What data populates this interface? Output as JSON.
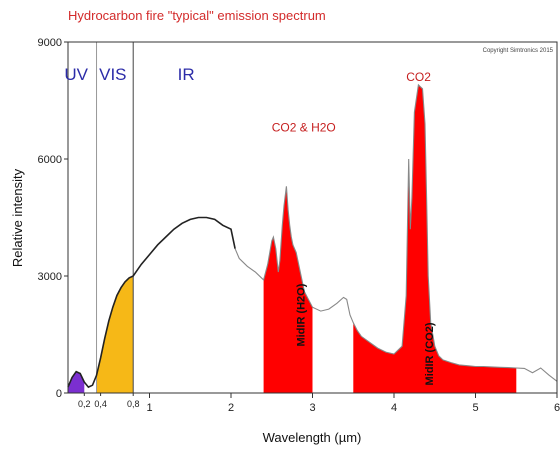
{
  "chart_data": {
    "type": "area",
    "title": "Hydrocarbon fire \"typical\" emission spectrum",
    "xlabel": "Wavelength (µm)",
    "ylabel": "Relative intensity",
    "xlim": [
      0,
      6
    ],
    "ylim": [
      0,
      9000
    ],
    "x_ticks": [
      {
        "value": 0.2,
        "label": "0,2",
        "minor": true
      },
      {
        "value": 0.4,
        "label": "0,4",
        "minor": true
      },
      {
        "value": 0.8,
        "label": "0,8",
        "minor": true
      },
      {
        "value": 1,
        "label": "1",
        "minor": false
      },
      {
        "value": 2,
        "label": "2",
        "minor": false
      },
      {
        "value": 3,
        "label": "3",
        "minor": false
      },
      {
        "value": 4,
        "label": "4",
        "minor": false
      },
      {
        "value": 5,
        "label": "5",
        "minor": false
      },
      {
        "value": 6,
        "label": "6",
        "minor": false
      }
    ],
    "y_ticks": [
      {
        "value": 0,
        "label": "0"
      },
      {
        "value": 3000,
        "label": "3000"
      },
      {
        "value": 6000,
        "label": "6000"
      },
      {
        "value": 9000,
        "label": "9000"
      }
    ],
    "series": [
      {
        "x": [
          0.0,
          0.05,
          0.1,
          0.15,
          0.2,
          0.25,
          0.3,
          0.35,
          0.4,
          0.45,
          0.5,
          0.55,
          0.6,
          0.65,
          0.7,
          0.75,
          0.8,
          0.85,
          0.9,
          1.0,
          1.1,
          1.2,
          1.3,
          1.4,
          1.5,
          1.6,
          1.7,
          1.8,
          1.9,
          2.0,
          2.05,
          2.1,
          2.2,
          2.3,
          2.4,
          2.45,
          2.5,
          2.52,
          2.55,
          2.58,
          2.6,
          2.63,
          2.65,
          2.68,
          2.7,
          2.72,
          2.74,
          2.76,
          2.8,
          2.85,
          2.9,
          3.0,
          3.1,
          3.2,
          3.3,
          3.38,
          3.42,
          3.46,
          3.5,
          3.55,
          3.6,
          3.7,
          3.8,
          3.9,
          4.0,
          4.1,
          4.15,
          4.18,
          4.2,
          4.22,
          4.25,
          4.3,
          4.35,
          4.38,
          4.4,
          4.42,
          4.45,
          4.5,
          4.55,
          4.6,
          4.7,
          4.8,
          4.9,
          5.0,
          5.1,
          5.2,
          5.3,
          5.4,
          5.5,
          5.6,
          5.7,
          5.8,
          5.9,
          6.0
        ],
        "y": [
          150,
          400,
          550,
          500,
          280,
          150,
          200,
          450,
          900,
          1400,
          1850,
          2200,
          2500,
          2700,
          2850,
          2950,
          3000,
          3150,
          3300,
          3550,
          3800,
          4000,
          4200,
          4350,
          4450,
          4500,
          4500,
          4450,
          4300,
          4200,
          3700,
          3450,
          3250,
          3100,
          2900,
          3300,
          3900,
          4000,
          3700,
          3100,
          3400,
          4300,
          4800,
          5300,
          4700,
          4300,
          4000,
          3800,
          3600,
          3100,
          2600,
          2200,
          2100,
          2150,
          2300,
          2450,
          2400,
          2000,
          1800,
          1600,
          1450,
          1300,
          1150,
          1050,
          1000,
          1200,
          2500,
          6000,
          4200,
          5000,
          7200,
          7900,
          7800,
          6900,
          5000,
          3000,
          1800,
          1200,
          950,
          850,
          780,
          720,
          700,
          680,
          680,
          670,
          660,
          650,
          640,
          630,
          520,
          640,
          460,
          300
        ]
      }
    ],
    "filled_bands": [
      {
        "name": "UV",
        "x_range": [
          0.0,
          0.2
        ],
        "color": "#7b2fd0"
      },
      {
        "name": "VIS",
        "x_range": [
          0.35,
          0.8
        ],
        "color": "#f6b817"
      },
      {
        "name": "MidIR (H2O)",
        "x_range": [
          2.4,
          3.0
        ],
        "color": "#ff0000"
      },
      {
        "name": "MidIR (CO2)",
        "x_range": [
          3.5,
          5.5
        ],
        "color": "#ff0000"
      }
    ],
    "region_boundaries": [
      {
        "x": 0.35,
        "color": "#999999"
      },
      {
        "x": 0.8,
        "color": "#444444"
      }
    ],
    "region_labels": [
      {
        "text": "UV",
        "x": 0.1
      },
      {
        "text": "VIS",
        "x": 0.55
      },
      {
        "text": "IR",
        "x": 1.45
      }
    ],
    "annotations": [
      {
        "text": "CO2 & H2O",
        "x": 2.5,
        "y": 6700
      },
      {
        "text": "CO2",
        "x": 4.15,
        "y": 8000
      }
    ],
    "band_labels": [
      {
        "text": "MidIR (H2O)",
        "x": 2.9,
        "y": 2000
      },
      {
        "text": "MidIR (CO2)",
        "x": 4.48,
        "y": 1000
      }
    ],
    "copyright": "Copyright Simtronics 2015",
    "grid": false,
    "legend": "none",
    "colors": {
      "line": "#222222",
      "tail_line": "#888888",
      "title": "#d32b2b",
      "annotation": "#c62020",
      "region_label": "#2c2ca8"
    }
  }
}
